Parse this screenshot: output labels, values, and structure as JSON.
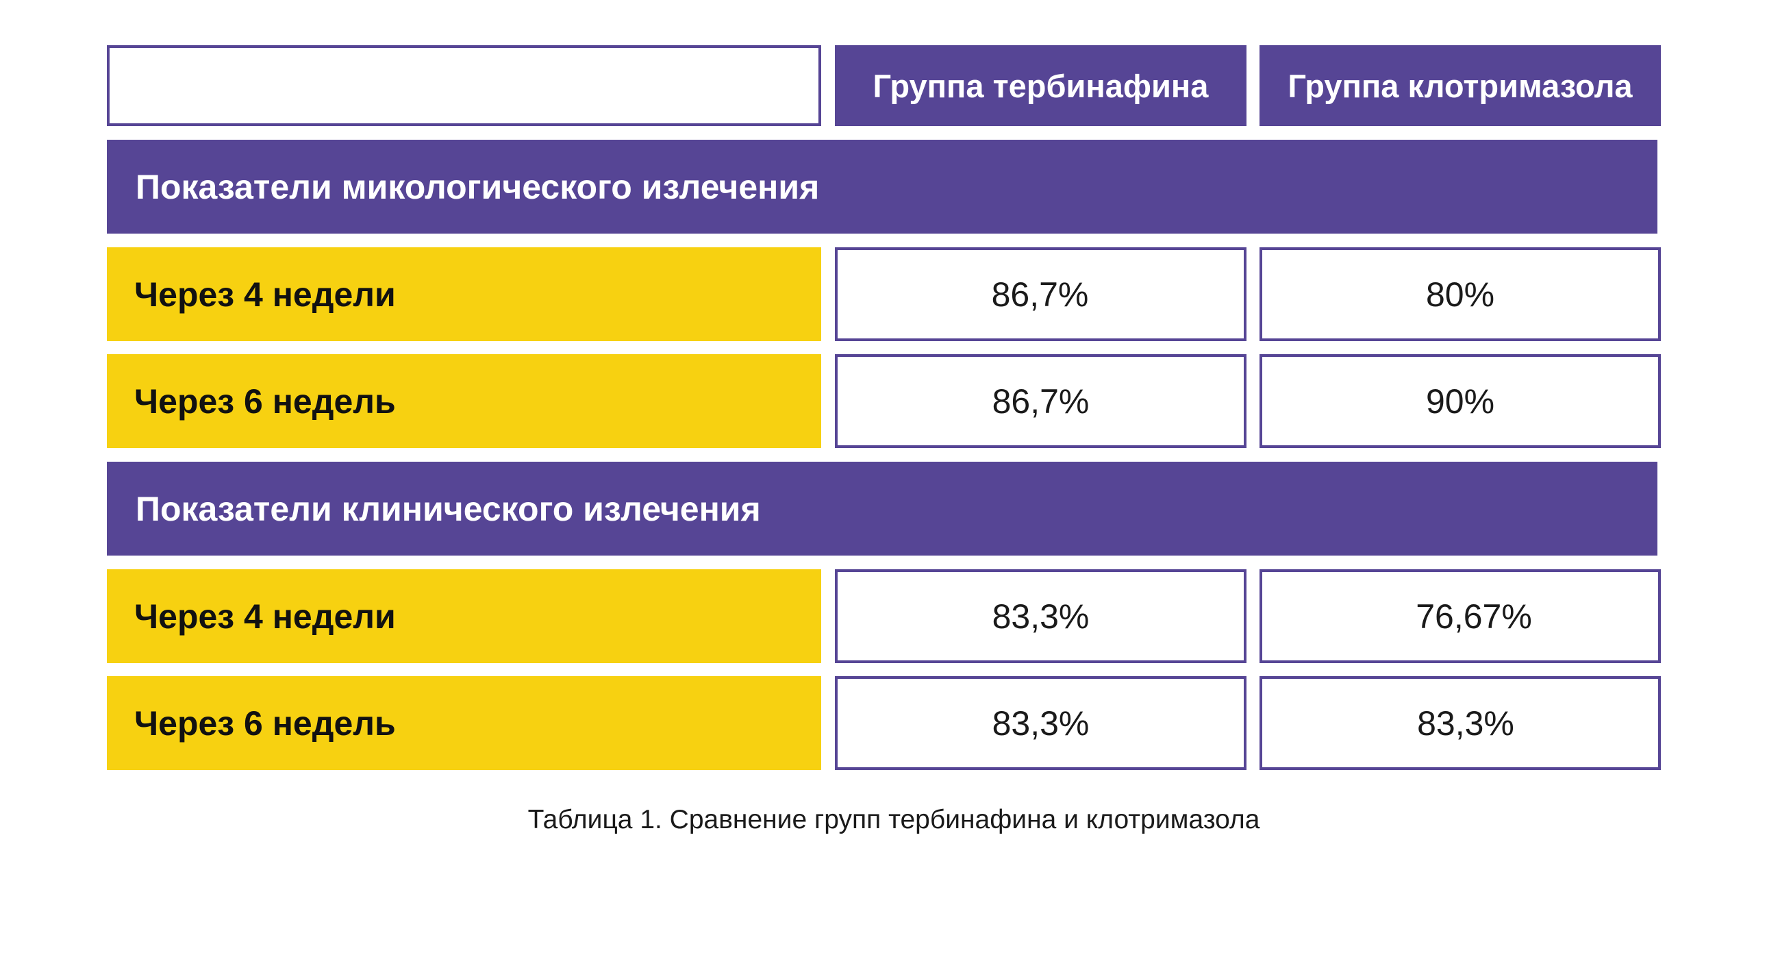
{
  "table": {
    "columns": [
      "Группа тербинафина",
      "Группа клотримазола"
    ],
    "sections": [
      {
        "title": "Показатели микологического излечения",
        "rows": [
          {
            "label": "Через 4 недели",
            "values": [
              "86,7%",
              "80%"
            ]
          },
          {
            "label": "Через 6 недель",
            "values": [
              "86,7%",
              "90%"
            ]
          }
        ]
      },
      {
        "title": "Показатели клинического излечения",
        "rows": [
          {
            "label": "Через 4 недели",
            "values": [
              "83,3%",
              "76,67%"
            ]
          },
          {
            "label": "Через 6 недель",
            "values": [
              "83,3%",
              "83,3%"
            ]
          }
        ]
      }
    ]
  },
  "caption": "Таблица 1. Сравнение групп тербинафина и клотримазола",
  "colors": {
    "purple": "#564595",
    "yellow": "#f7d111",
    "white": "#ffffff",
    "text": "#1a1a1a"
  }
}
